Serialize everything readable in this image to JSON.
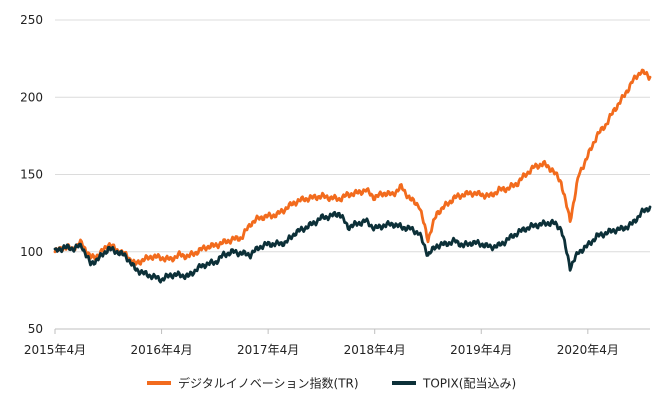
{
  "chart_data": {
    "type": "line",
    "title": "",
    "xlabel": "",
    "ylabel": "",
    "ylim": [
      50,
      250
    ],
    "yticks": [
      50,
      100,
      150,
      200,
      250
    ],
    "xticks": [
      {
        "t": 0,
        "label": "2015年4月"
      },
      {
        "t": 12,
        "label": "2016年4月"
      },
      {
        "t": 24,
        "label": "2017年4月"
      },
      {
        "t": 36,
        "label": "2018年4月"
      },
      {
        "t": 48,
        "label": "2019年4月"
      },
      {
        "t": 60,
        "label": "2020年4月"
      }
    ],
    "grid": "horizontal",
    "legend_position": "bottom",
    "series": [
      {
        "name": "デジタルイノベーション指数(TR)",
        "color": "#f26b1d",
        "points": [
          [
            0,
            100
          ],
          [
            1,
            103
          ],
          [
            2,
            102
          ],
          [
            3,
            106
          ],
          [
            4,
            96
          ],
          [
            5,
            98
          ],
          [
            6,
            105
          ],
          [
            7,
            101
          ],
          [
            8,
            98
          ],
          [
            9,
            92
          ],
          [
            10,
            95
          ],
          [
            11,
            97
          ],
          [
            12,
            96
          ],
          [
            13,
            95
          ],
          [
            14,
            98
          ],
          [
            15,
            97
          ],
          [
            16,
            100
          ],
          [
            17,
            103
          ],
          [
            18,
            104
          ],
          [
            19,
            106
          ],
          [
            20,
            108
          ],
          [
            21,
            109
          ],
          [
            22,
            118
          ],
          [
            23,
            122
          ],
          [
            24,
            123
          ],
          [
            25,
            124
          ],
          [
            26,
            128
          ],
          [
            27,
            132
          ],
          [
            28,
            134
          ],
          [
            29,
            135
          ],
          [
            30,
            136
          ],
          [
            31,
            135
          ],
          [
            32,
            134
          ],
          [
            33,
            137
          ],
          [
            34,
            138
          ],
          [
            35,
            140
          ],
          [
            36,
            135
          ],
          [
            37,
            138
          ],
          [
            38,
            137
          ],
          [
            39,
            142
          ],
          [
            40,
            134
          ],
          [
            41,
            130
          ],
          [
            42,
            108
          ],
          [
            43,
            125
          ],
          [
            44,
            130
          ],
          [
            45,
            135
          ],
          [
            46,
            137
          ],
          [
            47,
            138
          ],
          [
            48,
            137
          ],
          [
            49,
            136
          ],
          [
            50,
            140
          ],
          [
            51,
            141
          ],
          [
            52,
            144
          ],
          [
            53,
            150
          ],
          [
            54,
            155
          ],
          [
            55,
            157
          ],
          [
            56,
            153
          ],
          [
            57,
            145
          ],
          [
            58,
            120
          ],
          [
            59,
            150
          ],
          [
            60,
            162
          ],
          [
            61,
            175
          ],
          [
            62,
            182
          ],
          [
            63,
            192
          ],
          [
            64,
            200
          ],
          [
            65,
            210
          ],
          [
            66,
            217
          ],
          [
            67,
            213
          ]
        ]
      },
      {
        "name": "TOPIX(配当込み)",
        "color": "#0c3038",
        "points": [
          [
            0,
            100
          ],
          [
            1,
            103
          ],
          [
            2,
            102
          ],
          [
            3,
            104
          ],
          [
            4,
            92
          ],
          [
            5,
            96
          ],
          [
            6,
            102
          ],
          [
            7,
            100
          ],
          [
            8,
            97
          ],
          [
            9,
            89
          ],
          [
            10,
            86
          ],
          [
            11,
            84
          ],
          [
            12,
            82
          ],
          [
            13,
            85
          ],
          [
            14,
            85
          ],
          [
            15,
            84
          ],
          [
            16,
            89
          ],
          [
            17,
            92
          ],
          [
            18,
            93
          ],
          [
            19,
            98
          ],
          [
            20,
            100
          ],
          [
            21,
            99
          ],
          [
            22,
            98
          ],
          [
            23,
            103
          ],
          [
            24,
            105
          ],
          [
            25,
            105
          ],
          [
            26,
            106
          ],
          [
            27,
            112
          ],
          [
            28,
            115
          ],
          [
            29,
            118
          ],
          [
            30,
            122
          ],
          [
            31,
            123
          ],
          [
            32,
            125
          ],
          [
            33,
            116
          ],
          [
            34,
            118
          ],
          [
            35,
            120
          ],
          [
            36,
            115
          ],
          [
            37,
            117
          ],
          [
            38,
            118
          ],
          [
            39,
            116
          ],
          [
            40,
            115
          ],
          [
            41,
            112
          ],
          [
            42,
            98
          ],
          [
            43,
            104
          ],
          [
            44,
            105
          ],
          [
            45,
            107
          ],
          [
            46,
            104
          ],
          [
            47,
            106
          ],
          [
            48,
            105
          ],
          [
            49,
            103
          ],
          [
            50,
            104
          ],
          [
            51,
            108
          ],
          [
            52,
            112
          ],
          [
            53,
            115
          ],
          [
            54,
            117
          ],
          [
            55,
            118
          ],
          [
            56,
            119
          ],
          [
            57,
            115
          ],
          [
            58,
            90
          ],
          [
            59,
            100
          ],
          [
            60,
            104
          ],
          [
            61,
            110
          ],
          [
            62,
            112
          ],
          [
            63,
            114
          ],
          [
            64,
            115
          ],
          [
            65,
            118
          ],
          [
            66,
            125
          ],
          [
            67,
            129
          ]
        ]
      }
    ]
  }
}
